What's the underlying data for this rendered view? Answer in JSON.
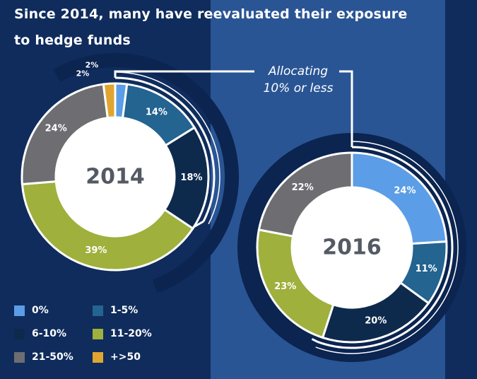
{
  "title": "Since 2014, many have reevaluated their exposure to hedge funds",
  "title_lines": [
    "Since 2014, many have reevaluated their exposure",
    "to hedge funds"
  ],
  "annotation": [
    "Allocating",
    "10% or less"
  ],
  "colors": {
    "background": "#0f2c5c",
    "panel": "#2a5594",
    "ring": "#0b2450",
    "0%": "#5b9de6",
    "1-5%": "#236490",
    "6-10%": "#0d2a4c",
    "11-20%": "#9fb03d",
    "21-50%": "#6e6e72",
    "+>50": "#e0a530"
  },
  "legend": [
    {
      "label": "0%",
      "color": "#5b9de6"
    },
    {
      "label": "1-5%",
      "color": "#236490"
    },
    {
      "label": "6-10%",
      "color": "#0d2a4c"
    },
    {
      "label": "11-20%",
      "color": "#9fb03d"
    },
    {
      "label": "21-50%",
      "color": "#6e6e72"
    },
    {
      "label": "+>50",
      "color": "#e0a530"
    }
  ],
  "chart_data": [
    {
      "type": "pie",
      "variant": "donut",
      "title": "2014",
      "categories": [
        "0%",
        "1-5%",
        "6-10%",
        "11-20%",
        "21-50%",
        "+>50"
      ],
      "values": [
        2,
        14,
        18,
        39,
        24,
        2
      ],
      "labels": [
        "2%",
        "14%",
        "18%",
        "39%",
        "24%",
        "2%"
      ]
    },
    {
      "type": "pie",
      "variant": "donut",
      "title": "2016",
      "categories": [
        "0%",
        "1-5%",
        "6-10%",
        "11-20%",
        "21-50%"
      ],
      "values": [
        24,
        11,
        20,
        23,
        22
      ],
      "labels": [
        "24%",
        "11%",
        "20%",
        "23%",
        "22%"
      ]
    }
  ]
}
